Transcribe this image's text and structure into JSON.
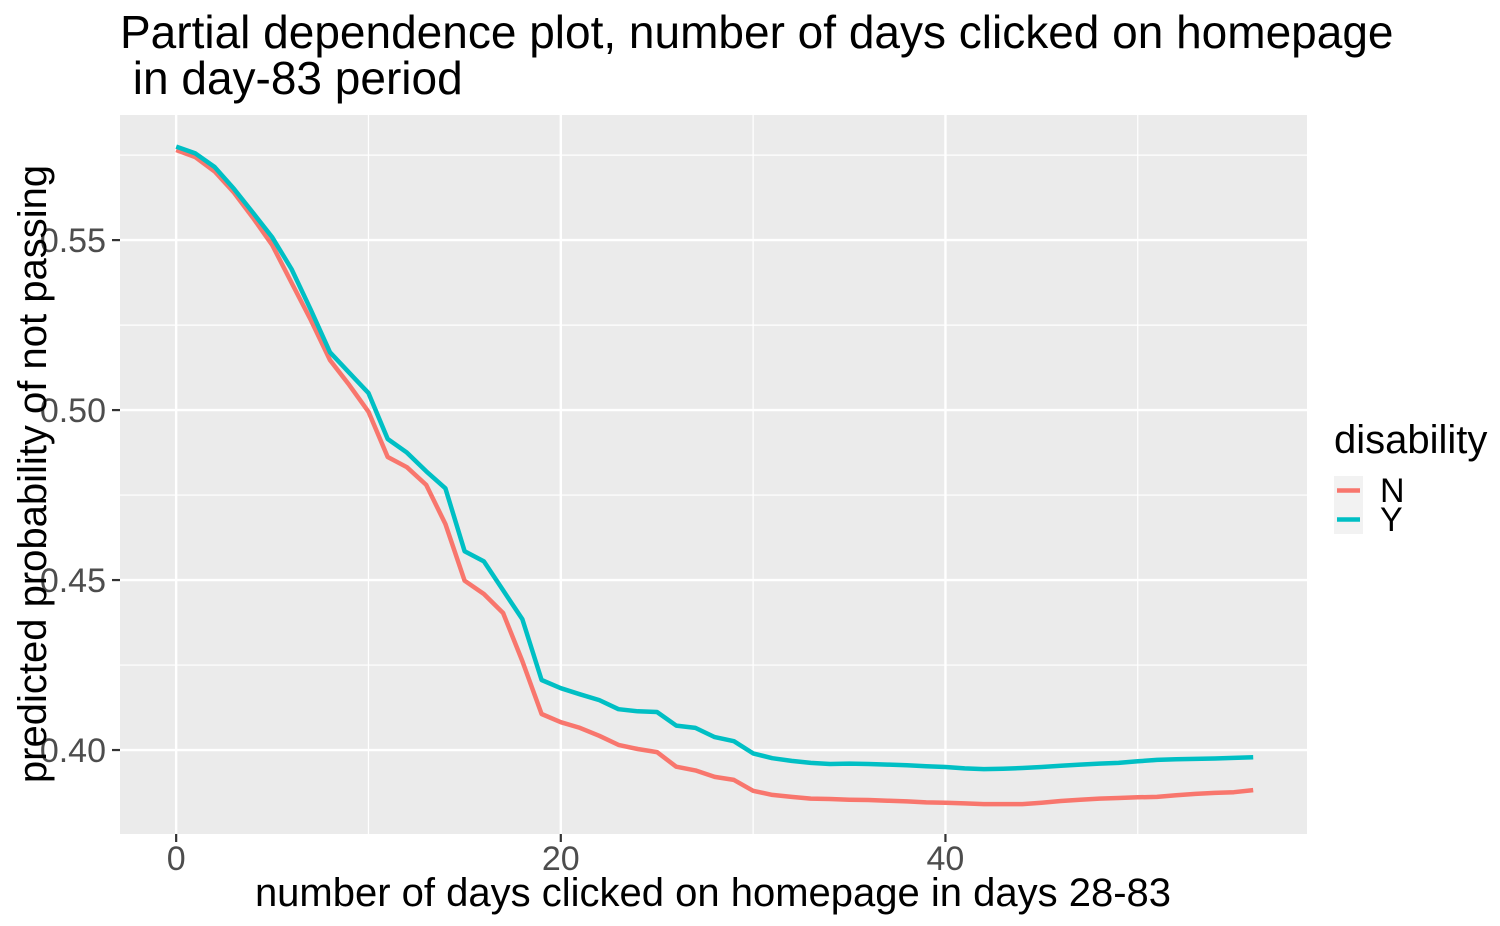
{
  "chart_data": {
    "type": "line",
    "title_line1": "Partial dependence plot, number of days clicked on homepage",
    "title_line2": " in day-83 period",
    "xlabel": "number of days clicked on homepage in days 28-83",
    "ylabel": "predicted probability of not passing",
    "xlim": [
      -2.92,
      58.8
    ],
    "ylim": [
      0.3753,
      0.5868
    ],
    "x_ticks": [
      0,
      20,
      40
    ],
    "x_tick_labels": [
      "0",
      "20",
      "40"
    ],
    "x_minor_gridlines": [
      10,
      30,
      50
    ],
    "y_ticks": [
      0.4,
      0.45,
      0.5,
      0.55
    ],
    "y_tick_labels": [
      "0.40",
      "0.45",
      "0.50",
      "0.55"
    ],
    "y_minor_gridlines": [
      0.425,
      0.475,
      0.525,
      0.575
    ],
    "grid": true,
    "legend": {
      "title": "disability",
      "position": "right"
    },
    "x": [
      0,
      1,
      2,
      3,
      4,
      5,
      6,
      7,
      8,
      9,
      10,
      11,
      12,
      13,
      14,
      15,
      16,
      17,
      18,
      19,
      20,
      21,
      22,
      23,
      24,
      25,
      26,
      27,
      28,
      29,
      30,
      31,
      32,
      33,
      34,
      35,
      36,
      37,
      38,
      39,
      40,
      41,
      42,
      43,
      44,
      45,
      46,
      47,
      48,
      49,
      50,
      51,
      52,
      53,
      54,
      55,
      56
    ],
    "series": [
      {
        "name": "N",
        "color": "#F8766D",
        "values": [
          0.5765,
          0.5744,
          0.5702,
          0.564,
          0.5565,
          0.5485,
          0.5375,
          0.5265,
          0.5147,
          0.5074,
          0.4995,
          0.4862,
          0.4832,
          0.478,
          0.4665,
          0.4498,
          0.4459,
          0.4403,
          0.4262,
          0.4106,
          0.4082,
          0.4065,
          0.4042,
          0.4015,
          0.4003,
          0.3994,
          0.3951,
          0.394,
          0.3921,
          0.3912,
          0.388,
          0.3868,
          0.3862,
          0.3857,
          0.3856,
          0.3854,
          0.3853,
          0.3851,
          0.3849,
          0.3846,
          0.3845,
          0.3843,
          0.3841,
          0.3841,
          0.3841,
          0.3845,
          0.385,
          0.3854,
          0.3857,
          0.3859,
          0.3861,
          0.3862,
          0.3867,
          0.3871,
          0.3874,
          0.3876,
          0.3882
        ]
      },
      {
        "name": "Y",
        "color": "#00BFC4",
        "values": [
          0.5775,
          0.5755,
          0.5715,
          0.5651,
          0.558,
          0.5508,
          0.5415,
          0.5295,
          0.517,
          0.511,
          0.505,
          0.4915,
          0.4875,
          0.482,
          0.477,
          0.4585,
          0.4555,
          0.447,
          0.4385,
          0.4206,
          0.4182,
          0.4164,
          0.4147,
          0.412,
          0.4114,
          0.4112,
          0.4072,
          0.4065,
          0.4038,
          0.4026,
          0.399,
          0.3976,
          0.3968,
          0.3962,
          0.3959,
          0.396,
          0.3959,
          0.3957,
          0.3955,
          0.3952,
          0.395,
          0.3946,
          0.3944,
          0.3945,
          0.3947,
          0.395,
          0.3954,
          0.3957,
          0.396,
          0.3962,
          0.3967,
          0.3971,
          0.3973,
          0.3974,
          0.3975,
          0.3977,
          0.3979
        ]
      }
    ],
    "colors": {
      "panel_background": "#EBEBEB",
      "gridline": "#FFFFFF",
      "tick_label": "#4D4D4D",
      "tick_mark": "#333333",
      "text": "#000000",
      "legend_key_background": "#F2F2F2",
      "page_background": "#FFFFFF"
    }
  }
}
